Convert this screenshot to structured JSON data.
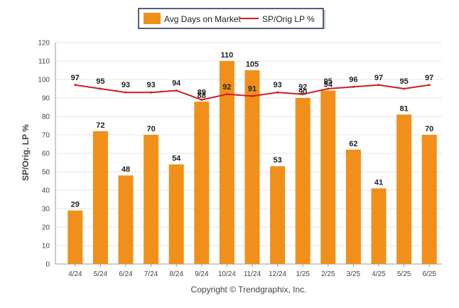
{
  "chart_data": {
    "type": "bar",
    "categories": [
      "4/24",
      "5/24",
      "6/24",
      "7/24",
      "8/24",
      "9/24",
      "10/24",
      "11/24",
      "12/24",
      "1/25",
      "2/25",
      "3/25",
      "4/25",
      "5/25",
      "6/25"
    ],
    "series": [
      {
        "name": "Avg Days on Market",
        "type": "bar",
        "color": "#f0901a",
        "values": [
          29,
          72,
          48,
          70,
          54,
          88,
          110,
          105,
          53,
          90,
          94,
          62,
          41,
          81,
          70
        ]
      },
      {
        "name": "SP/Orig LP %",
        "type": "line",
        "color": "#cc1f1f",
        "values": [
          97,
          95,
          93,
          93,
          94,
          89,
          92,
          91,
          93,
          92,
          95,
          96,
          97,
          95,
          97
        ]
      }
    ],
    "ylabel": "SP/Orig. LP %",
    "ylim": [
      0,
      120
    ],
    "yticks": [
      0,
      10,
      20,
      30,
      40,
      50,
      60,
      70,
      80,
      90,
      100,
      110,
      120
    ],
    "grid": true,
    "legend": "top-center"
  },
  "footer": {
    "copyright": "Copyright © Trendgraphix, Inc."
  }
}
